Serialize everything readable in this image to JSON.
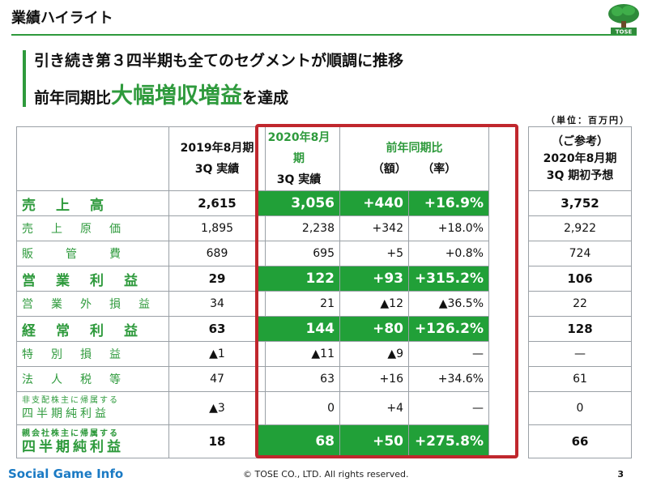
{
  "header": {
    "title": "業績ハイライト",
    "logo_text": "TOSE"
  },
  "headline": {
    "line1": "引き続き第３四半期も全てのセグメントが順調に推移",
    "line2_pre": "前年同期比",
    "line2_big": "大幅増収増益",
    "line2_post": "を達成"
  },
  "unit": "（単位：百万円）",
  "columns": {
    "prev_l1": "2019年8月期",
    "prev_l2": "3Q 実績",
    "curr_l1": "2020年8月期",
    "curr_l2": "3Q 実績",
    "yoy_l1": "前年同期比",
    "yoy_amt": "（額）",
    "yoy_rate": "（率）",
    "fc_l1": "（ご参考）",
    "fc_l2": "2020年8月期",
    "fc_l3": "3Q 期初予想"
  },
  "rows": [
    {
      "label": "売　上　高",
      "prev": "2,615",
      "curr": "3,056",
      "amt": "+440",
      "rate": "+16.9%",
      "fc": "3,752"
    },
    {
      "label": "売　上　原　価",
      "prev": "1,895",
      "curr": "2,238",
      "amt": "+342",
      "rate": "+18.0%",
      "fc": "2,922"
    },
    {
      "label": "販　　管　　費",
      "prev": "689",
      "curr": "695",
      "amt": "+5",
      "rate": "+0.8%",
      "fc": "724"
    },
    {
      "label": "営　業　利　益",
      "prev": "29",
      "curr": "122",
      "amt": "+93",
      "rate": "+315.2%",
      "fc": "106"
    },
    {
      "label": "営　業　外　損　益",
      "prev": "34",
      "curr": "21",
      "amt": "▲12",
      "rate": "▲36.5%",
      "fc": "22"
    },
    {
      "label": "経　常　利　益",
      "prev": "63",
      "curr": "144",
      "amt": "+80",
      "rate": "+126.2%",
      "fc": "128"
    },
    {
      "label": "特　別　損　益",
      "prev": "▲1",
      "curr": "▲11",
      "amt": "▲9",
      "rate": "—",
      "fc": "—"
    },
    {
      "label": "法　人　税　等",
      "prev": "47",
      "curr": "63",
      "amt": "+16",
      "rate": "+34.6%",
      "fc": "61"
    },
    {
      "label_small": "非支配株主に帰属する",
      "label": "四半期純利益",
      "prev": "▲3",
      "curr": "0",
      "amt": "+4",
      "rate": "—",
      "fc": "0"
    },
    {
      "label_small": "親会社株主に帰属する",
      "label": "四半期純利益",
      "prev": "18",
      "curr": "68",
      "amt": "+50",
      "rate": "+275.8%",
      "fc": "66"
    }
  ],
  "footer": {
    "brand_a": "Social Game ",
    "brand_b": "Info",
    "copyright": "© TOSE CO., LTD. All rights reserved.",
    "page": "3"
  }
}
